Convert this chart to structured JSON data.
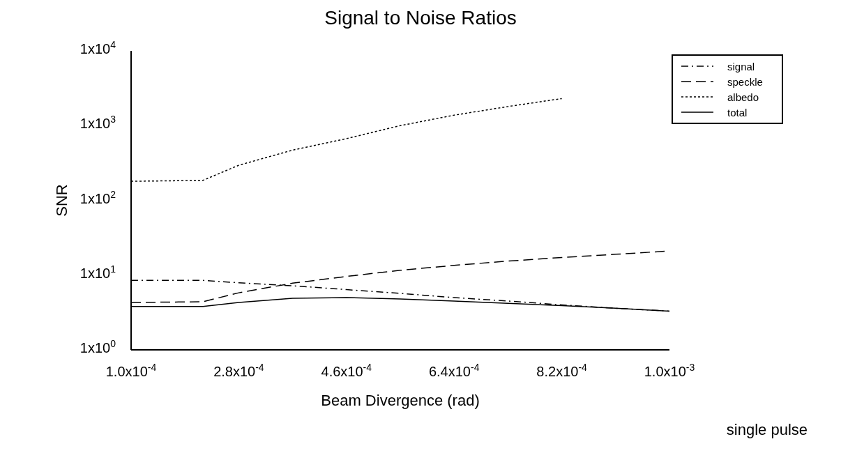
{
  "chart_data": {
    "type": "line",
    "title": "Signal to Noise Ratios",
    "xlabel": "Beam Divergence (rad)",
    "ylabel": "SNR",
    "annotations": [
      "single pulse"
    ],
    "x": [
      0.0001,
      0.00022,
      0.00028,
      0.00037,
      0.00046,
      0.00055,
      0.00064,
      0.00073,
      0.00082,
      0.00091,
      0.001
    ],
    "series": [
      {
        "name": "signal",
        "color": "#000000",
        "line_style": "dashdot",
        "values": [
          8.5,
          8.5,
          7.9,
          7.2,
          6.4,
          5.7,
          5.0,
          4.5,
          4.0,
          3.6,
          3.3
        ]
      },
      {
        "name": "speckle",
        "color": "#000000",
        "line_style": "dashed",
        "values": [
          4.3,
          4.4,
          5.8,
          7.8,
          9.6,
          11.6,
          13.5,
          15.4,
          17.2,
          19,
          21
        ]
      },
      {
        "name": "albedo",
        "color": "#000000",
        "line_style": "dotted",
        "values": [
          180,
          185,
          295,
          470,
          670,
          1000,
          1380,
          1800,
          2300,
          null,
          null
        ]
      },
      {
        "name": "total",
        "color": "#000000",
        "line_style": "solid",
        "values": [
          3.8,
          3.8,
          4.3,
          4.9,
          5.0,
          4.8,
          4.5,
          4.2,
          3.9,
          3.6,
          3.3
        ]
      }
    ],
    "xlim": [
      0.0001,
      0.001
    ],
    "xticks": [
      {
        "value": 0.0001,
        "label": "1.0x10$^{-4}$"
      },
      {
        "value": 0.00028,
        "label": "2.8x10$^{-4}$"
      },
      {
        "value": 0.00046,
        "label": "4.6x10$^{-4}$"
      },
      {
        "value": 0.00064,
        "label": "6.4x10$^{-4}$"
      },
      {
        "value": 0.00082,
        "label": "8.2x10$^{-4}$"
      },
      {
        "value": 0.001,
        "label": "1.0x10$^{-3}$"
      }
    ],
    "ylim": [
      1,
      10000
    ],
    "yticks": [
      {
        "value": 1,
        "label": "1x10$^{0}$"
      },
      {
        "value": 10,
        "label": "1x10$^{1}$"
      },
      {
        "value": 100,
        "label": "1x10$^{2}$"
      },
      {
        "value": 1000,
        "label": "1x10$^{3}$"
      },
      {
        "value": 10000,
        "label": "1x10$^{4}$"
      }
    ],
    "log": "y",
    "grid": false,
    "legend": "top right",
    "marker": "none"
  }
}
